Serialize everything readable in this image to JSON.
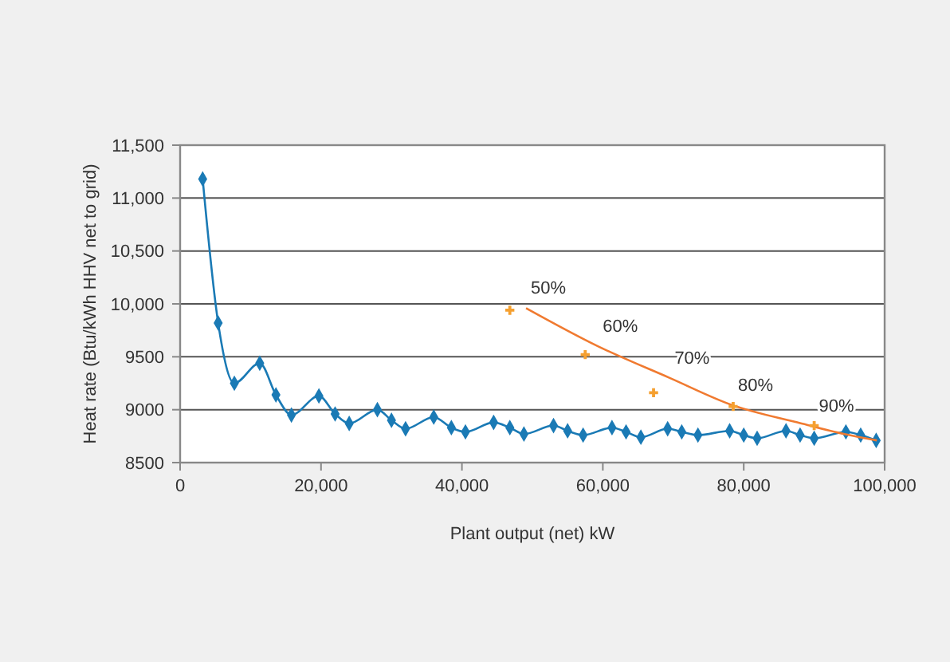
{
  "chart_data": {
    "type": "line",
    "xlabel": "Plant output (net) kW",
    "ylabel": "Heat rate (Btu/kWh HHV net to grid)",
    "xlim": [
      0,
      100000
    ],
    "xticks": [
      {
        "value": 0,
        "label": "0"
      },
      {
        "value": 20000,
        "label": "20,000"
      },
      {
        "value": 40000,
        "label": "40,000"
      },
      {
        "value": 60000,
        "label": "60,000"
      },
      {
        "value": 80000,
        "label": "80,000"
      },
      {
        "value": 100000,
        "label": "100,000"
      }
    ],
    "ylim": [
      8500,
      11500
    ],
    "yticks": [
      {
        "value": 8500,
        "label": "8500"
      },
      {
        "value": 9000,
        "label": "9000"
      },
      {
        "value": 9500,
        "label": "9500"
      },
      {
        "value": 10000,
        "label": "10,000"
      },
      {
        "value": 10500,
        "label": "10,500"
      },
      {
        "value": 11000,
        "label": "11,000"
      },
      {
        "value": 11500,
        "label": "11,500"
      }
    ],
    "grid": "y",
    "series": [
      {
        "color": "#1a7ab5",
        "marker": "diamond",
        "x": [
          3200,
          5400,
          7700,
          11300,
          13600,
          15800,
          19700,
          22000,
          24000,
          28000,
          30000,
          32000,
          36000,
          38500,
          40500,
          44500,
          46800,
          48800,
          53000,
          55000,
          57200,
          61300,
          63300,
          65400,
          69200,
          71200,
          73500,
          78000,
          80000,
          81900,
          86000,
          88000,
          90000,
          94500,
          96600,
          98800
        ],
        "values": [
          11180,
          9820,
          9250,
          9440,
          9140,
          8950,
          9130,
          8960,
          8870,
          9000,
          8900,
          8820,
          8930,
          8830,
          8790,
          8880,
          8830,
          8770,
          8850,
          8800,
          8760,
          8830,
          8790,
          8740,
          8820,
          8790,
          8760,
          8800,
          8760,
          8730,
          8800,
          8760,
          8730,
          8790,
          8760,
          8710
        ]
      },
      {
        "color": "#f07a30",
        "marker": "none",
        "x": [
          49100,
          59300,
          69500,
          78500,
          87600,
          94300,
          98900
        ],
        "values": [
          9960,
          9600,
          9300,
          9040,
          8880,
          8770,
          8710
        ]
      },
      {
        "type": "scatter",
        "color": "#f5a030",
        "marker": "cross",
        "x": [
          46800,
          57500,
          67200,
          78500,
          90000
        ],
        "values": [
          9940,
          9520,
          9160,
          9030,
          8850
        ]
      }
    ],
    "annotations": [
      {
        "text": "50%",
        "x": 49100,
        "y": 9960
      },
      {
        "text": "60%",
        "x": 59300,
        "y": 9600
      },
      {
        "text": "70%",
        "x": 69500,
        "y": 9300
      },
      {
        "text": "80%",
        "x": 78500,
        "y": 9040
      },
      {
        "text": "90%",
        "x": 90000,
        "y": 8850
      }
    ]
  }
}
